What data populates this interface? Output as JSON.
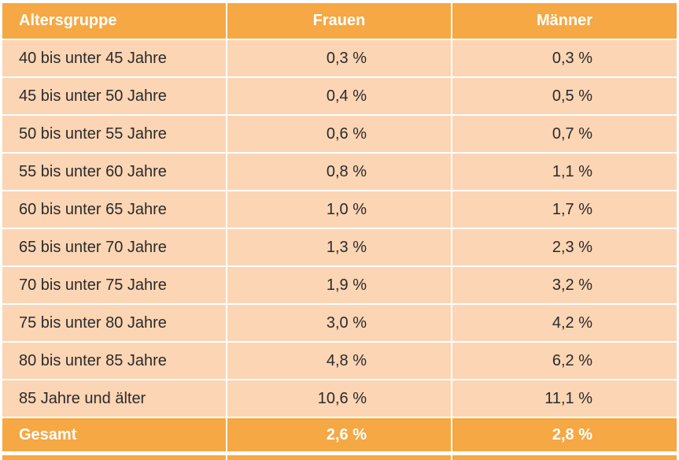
{
  "columns": [
    "Altersgruppe",
    "Frauen",
    "Männer"
  ],
  "rows": [
    {
      "group": "40 bis unter 45 Jahre",
      "women": "0,3 %",
      "men": "0,3 %"
    },
    {
      "group": "45 bis unter 50 Jahre",
      "women": "0,4 %",
      "men": "0,5 %"
    },
    {
      "group": "50 bis unter 55 Jahre",
      "women": "0,6 %",
      "men": "0,7 %"
    },
    {
      "group": "55 bis unter 60 Jahre",
      "women": "0,8 %",
      "men": "1,1 %"
    },
    {
      "group": "60 bis unter 65 Jahre",
      "women": "1,0 %",
      "men": "1,7 %"
    },
    {
      "group": "65 bis unter 70 Jahre",
      "women": "1,3 %",
      "men": "2,3 %"
    },
    {
      "group": "70 bis unter 75 Jahre",
      "women": "1,9 %",
      "men": "3,2 %"
    },
    {
      "group": "75 bis unter 80 Jahre",
      "women": "3,0 %",
      "men": "4,2 %"
    },
    {
      "group": "80 bis unter 85 Jahre",
      "women": "4,8 %",
      "men": "6,2 %"
    },
    {
      "group": "85 Jahre und älter",
      "women": "10,6 %",
      "men": "11,1 %"
    }
  ],
  "total": {
    "group": "Gesamt",
    "women": "2,6 %",
    "men": "2,8 %"
  },
  "colors": {
    "header": "#f5a843",
    "row": "#fbd5b4",
    "header_text": "#ffffff",
    "body_text": "#2b2b2b"
  }
}
